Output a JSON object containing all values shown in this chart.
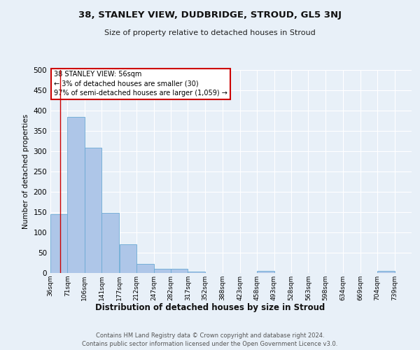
{
  "title": "38, STANLEY VIEW, DUDBRIDGE, STROUD, GL5 3NJ",
  "subtitle": "Size of property relative to detached houses in Stroud",
  "xlabel": "Distribution of detached houses by size in Stroud",
  "ylabel": "Number of detached properties",
  "footer1": "Contains HM Land Registry data © Crown copyright and database right 2024.",
  "footer2": "Contains public sector information licensed under the Open Government Licence v3.0.",
  "bin_labels": [
    "36sqm",
    "71sqm",
    "106sqm",
    "141sqm",
    "177sqm",
    "212sqm",
    "247sqm",
    "282sqm",
    "317sqm",
    "352sqm",
    "388sqm",
    "423sqm",
    "458sqm",
    "493sqm",
    "528sqm",
    "563sqm",
    "598sqm",
    "634sqm",
    "669sqm",
    "704sqm",
    "739sqm"
  ],
  "bar_heights": [
    145,
    385,
    308,
    148,
    71,
    23,
    10,
    10,
    4,
    0,
    0,
    0,
    5,
    0,
    0,
    0,
    0,
    0,
    0,
    5,
    0
  ],
  "bar_color": "#aec6e8",
  "bar_edge_color": "#6aaad4",
  "background_color": "#e8f0f8",
  "annotation_text": "38 STANLEY VIEW: 56sqm\n← 3% of detached houses are smaller (30)\n97% of semi-detached houses are larger (1,059) →",
  "annotation_box_color": "#ffffff",
  "annotation_box_edge": "#cc0000",
  "vline_color": "#cc0000",
  "vline_x": 56,
  "yticks": [
    0,
    50,
    100,
    150,
    200,
    250,
    300,
    350,
    400,
    450,
    500
  ],
  "ylim": [
    0,
    500
  ],
  "bin_edges": [
    36,
    71,
    106,
    141,
    177,
    212,
    247,
    282,
    317,
    352,
    388,
    423,
    458,
    493,
    528,
    563,
    598,
    634,
    669,
    704,
    739
  ]
}
